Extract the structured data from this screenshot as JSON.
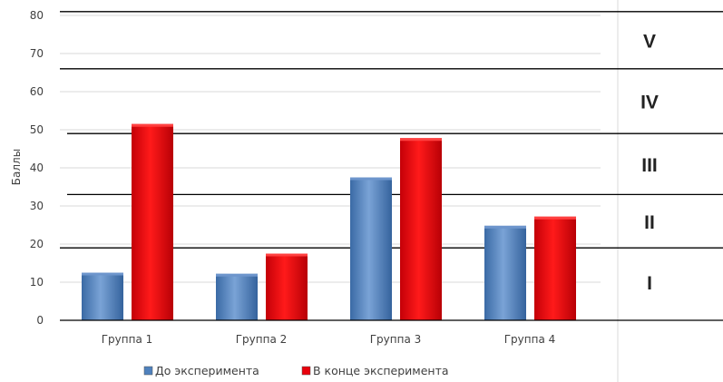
{
  "chart_data": {
    "type": "bar",
    "ylabel": "Баллы",
    "ylim": [
      0,
      80
    ],
    "yticks": [
      0,
      10,
      20,
      30,
      40,
      50,
      60,
      70,
      80
    ],
    "grid": true,
    "categories": [
      "Группа 1",
      "Группа 2",
      "Группа 3",
      "Группа 4"
    ],
    "series": [
      {
        "name": "До эксперимента",
        "color": "#4f81bd",
        "values": [
          12.5,
          12.2,
          37.5,
          24.8
        ]
      },
      {
        "name": "В конце эксперимента",
        "color": "#e8000b",
        "values": [
          51.5,
          17.5,
          47.8,
          27.2
        ]
      }
    ],
    "legend_position": "bottom",
    "level_boundaries": [
      19,
      33,
      49,
      66,
      81
    ],
    "levels": [
      {
        "label": "I",
        "value": 10
      },
      {
        "label": "II",
        "value": 26
      },
      {
        "label": "III",
        "value": 41
      },
      {
        "label": "IV",
        "value": 57.5
      },
      {
        "label": "V",
        "value": 73.5
      }
    ]
  }
}
